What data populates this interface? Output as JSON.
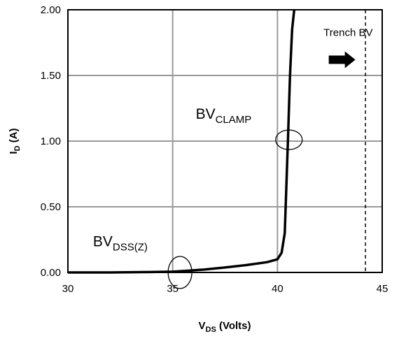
{
  "chart_data": {
    "type": "line",
    "xlabel": {
      "main": "V",
      "sub": "DS",
      "rest": " (Volts)"
    },
    "ylabel": {
      "main": "I",
      "sub": "D",
      "rest": " (A)"
    },
    "xlim": [
      30,
      45
    ],
    "ylim": [
      0,
      2
    ],
    "x_ticks": [
      30,
      35,
      40,
      45
    ],
    "x_tick_labels": [
      "30",
      "35",
      "40",
      "45"
    ],
    "y_ticks": [
      0,
      0.5,
      1.0,
      1.5,
      2.0
    ],
    "y_tick_labels": [
      "0.00",
      "0.50",
      "1.00",
      "1.50",
      "2.00"
    ],
    "grid": true,
    "series": [
      {
        "color": "#000000",
        "x": [
          30,
          32,
          34,
          35,
          35.6,
          36.5,
          37.5,
          38.5,
          39.5,
          40.0,
          40.2,
          40.35,
          40.5,
          40.6,
          40.7,
          40.8
        ],
        "y": [
          0,
          0,
          0.003,
          0.006,
          0.012,
          0.022,
          0.038,
          0.056,
          0.078,
          0.1,
          0.15,
          0.3,
          1.0,
          1.5,
          1.85,
          2.05
        ]
      }
    ],
    "reference_lines": [
      {
        "x": 44.2,
        "style": "dashed",
        "color": "#000000"
      }
    ],
    "annotations": [
      {
        "main": "BV",
        "sub": "CLAMP",
        "x": 36.1,
        "y": 1.17
      },
      {
        "main": "BV",
        "sub": "DSS(Z)",
        "x": 31.2,
        "y": 0.2
      },
      {
        "text": "Trench BV",
        "x": 42.2,
        "y": 1.8
      }
    ],
    "highlight_ellipses": [
      {
        "cx": 40.55,
        "cy": 1.01
      },
      {
        "cx": 35.35,
        "cy": 0.0
      }
    ]
  }
}
